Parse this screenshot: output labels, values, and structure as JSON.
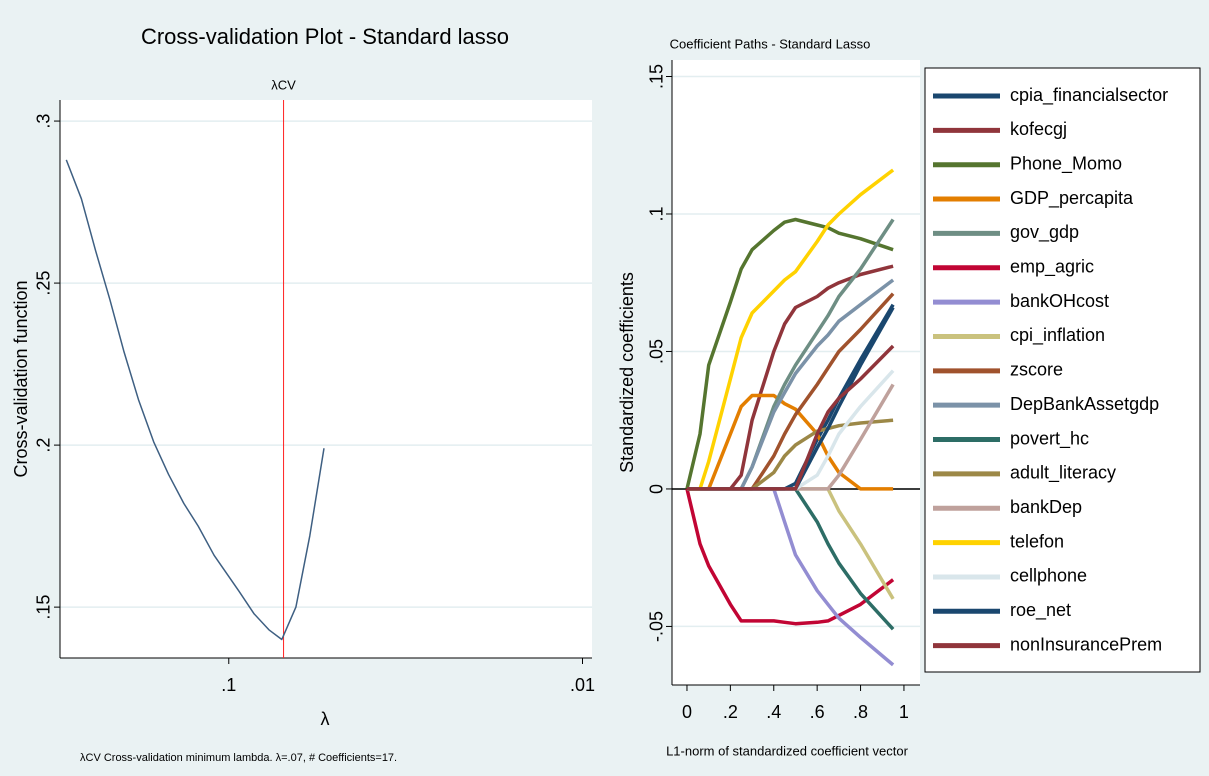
{
  "chart_data": [
    {
      "type": "line",
      "title": "Cross-validation Plot - Standard lasso",
      "xlabel": "λ",
      "ylabel": "Cross-validation function",
      "note": "λCV  Cross-validation minimum lambda.  λ=.07, # Coefficients=17.",
      "xscale": "log",
      "x": [
        0.288,
        0.261,
        0.238,
        0.217,
        0.198,
        0.18,
        0.163,
        0.148,
        0.134,
        0.122,
        0.11,
        0.0937,
        0.0849,
        0.077,
        0.0708,
        0.0646,
        0.059,
        0.0538
      ],
      "values": [
        0.288,
        0.276,
        0.26,
        0.245,
        0.229,
        0.214,
        0.201,
        0.191,
        0.182,
        0.175,
        0.166,
        0.155,
        0.148,
        0.143,
        0.14,
        0.15,
        0.172,
        0.199
      ],
      "color": "#3e5f82",
      "xlim": [
        0.3,
        0.0094
      ],
      "ylim": [
        0.1343,
        0.3065
      ],
      "xticks": [
        {
          "value": 0.1,
          "label": ".1"
        },
        {
          "value": 0.01,
          "label": ".01"
        }
      ],
      "yticks": [
        {
          "value": 0.15,
          "label": ".15"
        },
        {
          "value": 0.2,
          "label": ".2"
        },
        {
          "value": 0.25,
          "label": ".25"
        },
        {
          "value": 0.3,
          "label": ".3"
        }
      ],
      "grid": true,
      "reference_lines": [
        {
          "x": 0.07,
          "label": "λCV",
          "color": "#ff2020"
        }
      ]
    },
    {
      "type": "line",
      "title": "Coefficient Paths - Standard Lasso",
      "xlabel": "L1-norm of standardized coefficient vector",
      "ylabel": "Standardized coefficients",
      "x": [
        0,
        0.06,
        0.1,
        0.2,
        0.25,
        0.3,
        0.4,
        0.45,
        0.5,
        0.6,
        0.65,
        0.7,
        0.8,
        0.95
      ],
      "series": [
        {
          "name": "cpia_financialsector",
          "color": "#1a476f",
          "values": [
            0,
            0,
            0,
            0,
            0,
            0,
            0,
            0,
            0.002,
            0.018,
            0.025,
            0.033,
            0.047,
            0.067
          ]
        },
        {
          "name": "kofecgj",
          "color": "#90353b",
          "values": [
            0,
            0,
            0,
            0,
            0.005,
            0.025,
            0.05,
            0.06,
            0.066,
            0.07,
            0.073,
            0.075,
            0.078,
            0.081
          ]
        },
        {
          "name": "Phone_Momo",
          "color": "#55752f",
          "values": [
            0,
            0.02,
            0.045,
            0.068,
            0.08,
            0.087,
            0.094,
            0.097,
            0.098,
            0.096,
            0.095,
            0.093,
            0.091,
            0.087
          ]
        },
        {
          "name": "GDP_percapita",
          "color": "#e37e00",
          "values": [
            0,
            0,
            0,
            0.02,
            0.03,
            0.034,
            0.034,
            0.031,
            0.029,
            0.02,
            0.012,
            0.006,
            0,
            0
          ]
        },
        {
          "name": "gov_gdp",
          "color": "#6e8e84",
          "values": [
            0,
            0,
            0,
            0,
            0,
            0.008,
            0.03,
            0.038,
            0.045,
            0.057,
            0.063,
            0.07,
            0.08,
            0.098
          ]
        },
        {
          "name": "emp_agric",
          "color": "#c10534",
          "values": [
            0,
            -0.02,
            -0.028,
            -0.042,
            -0.048,
            -0.048,
            -0.048,
            -0.0485,
            -0.049,
            -0.0485,
            -0.048,
            -0.046,
            -0.042,
            -0.033
          ]
        },
        {
          "name": "bankOHcost",
          "color": "#938dd2",
          "values": [
            0,
            0,
            0,
            0,
            0,
            0,
            0,
            -0.012,
            -0.024,
            -0.037,
            -0.042,
            -0.047,
            -0.054,
            -0.064
          ]
        },
        {
          "name": "cpi_inflation",
          "color": "#cac27e",
          "values": [
            0,
            0,
            0,
            0,
            0,
            0,
            0,
            0,
            0,
            0,
            0,
            -0.008,
            -0.02,
            -0.04
          ]
        },
        {
          "name": "zscore",
          "color": "#a0522d",
          "values": [
            0,
            0,
            0,
            0,
            0,
            0,
            0.012,
            0.02,
            0.027,
            0.038,
            0.044,
            0.05,
            0.058,
            0.071
          ]
        },
        {
          "name": "DepBankAssetgdp",
          "color": "#7b92a8",
          "values": [
            0,
            0,
            0,
            0,
            0,
            0.008,
            0.028,
            0.035,
            0.042,
            0.052,
            0.056,
            0.061,
            0.067,
            0.076
          ]
        },
        {
          "name": "povert_hc",
          "color": "#2d6d66",
          "values": [
            0,
            0,
            0,
            0,
            0,
            0,
            0,
            0,
            0,
            -0.012,
            -0.02,
            -0.027,
            -0.038,
            -0.051
          ]
        },
        {
          "name": "adult_literacy",
          "color": "#9c8847",
          "values": [
            0,
            0,
            0,
            0,
            0,
            0,
            0.006,
            0.012,
            0.016,
            0.021,
            0.022,
            0.023,
            0.024,
            0.025
          ]
        },
        {
          "name": "bankDep",
          "color": "#bfa19c",
          "values": [
            0,
            0,
            0,
            0,
            0,
            0,
            0,
            0,
            0,
            0,
            0,
            0.005,
            0.018,
            0.038
          ]
        },
        {
          "name": "telefon",
          "color": "#ffd200",
          "values": [
            0,
            0,
            0.01,
            0.04,
            0.055,
            0.064,
            0.072,
            0.076,
            0.079,
            0.09,
            0.096,
            0.1,
            0.107,
            0.116
          ]
        },
        {
          "name": "cellphone",
          "color": "#d9e6eb",
          "values": [
            0,
            0,
            0,
            0,
            0,
            0,
            0,
            0,
            0,
            0.005,
            0.012,
            0.02,
            0.03,
            0.043
          ]
        },
        {
          "name": "roe_net",
          "color": "#1a476f",
          "values": [
            0,
            0,
            0,
            0,
            0,
            0,
            0,
            0,
            0,
            0.015,
            0.022,
            0.03,
            0.045,
            0.066
          ]
        },
        {
          "name": "nonInsurancePrem",
          "color": "#90353b",
          "values": [
            0,
            0,
            0,
            0,
            0,
            0,
            0,
            0,
            0,
            0.02,
            0.028,
            0.033,
            0.04,
            0.052
          ]
        }
      ],
      "xlim": [
        -0.069,
        1.074
      ],
      "ylim": [
        -0.0713,
        0.156
      ],
      "xticks": [
        0,
        {
          "value": 0.2,
          "label": ".2"
        },
        {
          "value": 0.4,
          "label": ".4"
        },
        {
          "value": 0.6,
          "label": ".6"
        },
        {
          "value": 0.8,
          "label": ".8"
        },
        1
      ],
      "yticks": [
        {
          "value": -0.05,
          "label": "-.05"
        },
        0,
        {
          "value": 0.05,
          "label": ".05"
        },
        {
          "value": 0.1,
          "label": ".1"
        },
        {
          "value": 0.15,
          "label": ".15"
        }
      ],
      "grid": true,
      "zero_line": true,
      "legend": "right"
    }
  ]
}
